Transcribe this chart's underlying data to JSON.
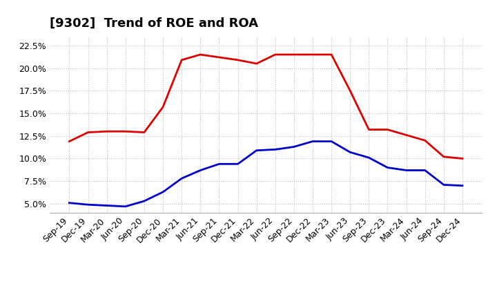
{
  "title": "[9302]  Trend of ROE and ROA",
  "x_labels": [
    "Sep-19",
    "Dec-19",
    "Mar-20",
    "Jun-20",
    "Sep-20",
    "Dec-20",
    "Mar-21",
    "Jun-21",
    "Sep-21",
    "Dec-21",
    "Mar-22",
    "Jun-22",
    "Sep-22",
    "Dec-22",
    "Mar-23",
    "Jun-23",
    "Sep-23",
    "Dec-23",
    "Mar-24",
    "Jun-24",
    "Sep-24",
    "Dec-24"
  ],
  "roe": [
    11.9,
    12.9,
    13.0,
    13.0,
    12.9,
    15.7,
    20.9,
    21.5,
    21.2,
    20.9,
    20.5,
    21.5,
    21.5,
    21.5,
    21.5,
    17.5,
    13.2,
    13.2,
    12.6,
    12.0,
    10.2,
    10.0
  ],
  "roa": [
    5.1,
    4.9,
    4.8,
    4.7,
    5.3,
    6.3,
    7.8,
    8.7,
    9.4,
    9.4,
    10.9,
    11.0,
    11.3,
    11.9,
    11.9,
    10.7,
    10.1,
    9.0,
    8.7,
    8.7,
    7.1,
    7.0
  ],
  "roe_color": "#dd0000",
  "roa_color": "#0000cc",
  "ylim_min": 4.0,
  "ylim_max": 23.5,
  "yticks": [
    5.0,
    7.5,
    10.0,
    12.5,
    15.0,
    17.5,
    20.0,
    22.5
  ],
  "background_color": "#ffffff",
  "grid_color": "#bbbbbb",
  "line_width": 2.0,
  "title_fontsize": 13,
  "tick_fontsize": 9,
  "legend_fontsize": 11
}
